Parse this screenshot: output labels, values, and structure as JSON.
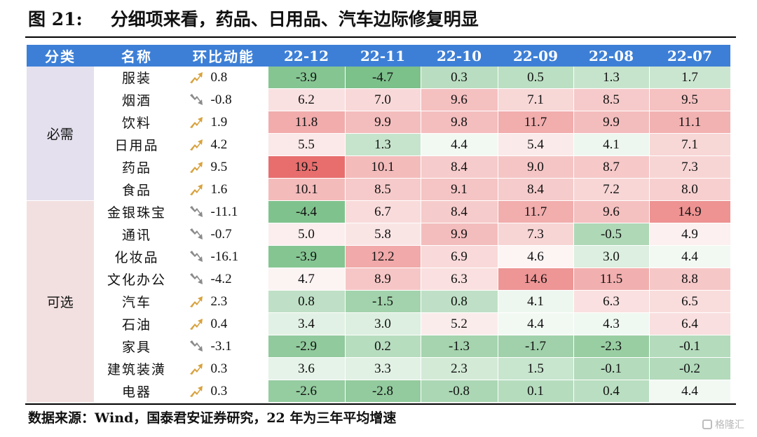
{
  "title": {
    "number": "图 21:",
    "text": "分细项来看，药品、日用品、汽车边际修复明显"
  },
  "headers": [
    "分类",
    "名称",
    "环比动能",
    "22-12",
    "22-11",
    "22-10",
    "22-09",
    "22-08",
    "22-07"
  ],
  "categories": [
    {
      "label": "必需",
      "color": "#e4e0ee"
    },
    {
      "label": "可选",
      "color": "#f2e0e0"
    }
  ],
  "rows": [
    {
      "cat": 0,
      "name": "服装",
      "mom": "0.8",
      "dir": "up",
      "values": [
        "-3.9",
        "-4.7",
        "0.3",
        "0.5",
        "1.3",
        "1.7"
      ]
    },
    {
      "cat": 0,
      "name": "烟酒",
      "mom": "-0.8",
      "dir": "down",
      "values": [
        "6.2",
        "7.0",
        "9.6",
        "7.1",
        "8.5",
        "9.5"
      ]
    },
    {
      "cat": 0,
      "name": "饮料",
      "mom": "1.9",
      "dir": "up",
      "values": [
        "11.8",
        "9.9",
        "9.8",
        "11.7",
        "9.9",
        "11.1"
      ]
    },
    {
      "cat": 0,
      "name": "日用品",
      "mom": "4.2",
      "dir": "up",
      "values": [
        "5.5",
        "1.3",
        "4.4",
        "5.4",
        "4.1",
        "7.1"
      ]
    },
    {
      "cat": 0,
      "name": "药品",
      "mom": "9.5",
      "dir": "up",
      "values": [
        "19.5",
        "10.1",
        "8.4",
        "9.0",
        "8.7",
        "7.3"
      ]
    },
    {
      "cat": 0,
      "name": "食品",
      "mom": "1.6",
      "dir": "up",
      "values": [
        "10.1",
        "8.5",
        "9.1",
        "8.4",
        "7.2",
        "8.0"
      ]
    },
    {
      "cat": 1,
      "name": "金银珠宝",
      "mom": "-11.1",
      "dir": "down",
      "values": [
        "-4.4",
        "6.7",
        "8.4",
        "11.7",
        "9.6",
        "14.9"
      ]
    },
    {
      "cat": 1,
      "name": "通讯",
      "mom": "-0.7",
      "dir": "down",
      "values": [
        "5.0",
        "5.8",
        "9.9",
        "7.3",
        "-0.5",
        "4.9"
      ]
    },
    {
      "cat": 1,
      "name": "化妆品",
      "mom": "-16.1",
      "dir": "down",
      "values": [
        "-3.9",
        "12.2",
        "6.9",
        "4.6",
        "3.0",
        "4.4"
      ]
    },
    {
      "cat": 1,
      "name": "文化办公",
      "mom": "-4.2",
      "dir": "down",
      "values": [
        "4.7",
        "8.9",
        "6.3",
        "14.6",
        "11.5",
        "8.8"
      ]
    },
    {
      "cat": 1,
      "name": "汽车",
      "mom": "2.3",
      "dir": "up",
      "values": [
        "0.8",
        "-1.5",
        "0.8",
        "4.1",
        "6.3",
        "6.5"
      ]
    },
    {
      "cat": 1,
      "name": "石油",
      "mom": "0.4",
      "dir": "up",
      "values": [
        "3.4",
        "3.0",
        "5.2",
        "4.4",
        "4.3",
        "6.4"
      ]
    },
    {
      "cat": 1,
      "name": "家具",
      "mom": "-3.1",
      "dir": "down",
      "values": [
        "-2.9",
        "0.2",
        "-1.3",
        "-1.7",
        "-2.3",
        "-0.1"
      ]
    },
    {
      "cat": 1,
      "name": "建筑装潢",
      "mom": "0.3",
      "dir": "up",
      "values": [
        "3.6",
        "3.3",
        "2.3",
        "1.5",
        "-0.1",
        "-0.2"
      ]
    },
    {
      "cat": 1,
      "name": "电器",
      "mom": "0.3",
      "dir": "up",
      "values": [
        "-2.6",
        "-2.8",
        "-0.8",
        "0.1",
        "0.4",
        "4.4"
      ]
    }
  ],
  "colors": {
    "header_bg": "#3d7fd6",
    "positive_high": "#e86e6e",
    "negative_high": "#7cc08a",
    "up_arrow": "#d8a23e",
    "down_arrow": "#8a8a8a"
  },
  "chart_data": {
    "type": "heatmap",
    "title": "分细项来看，药品、日用品、汽车边际修复明显",
    "x": [
      "22-12",
      "22-11",
      "22-10",
      "22-09",
      "22-08",
      "22-07"
    ],
    "y": [
      "服装",
      "烟酒",
      "饮料",
      "日用品",
      "药品",
      "食品",
      "金银珠宝",
      "通讯",
      "化妆品",
      "文化办公",
      "汽车",
      "石油",
      "家具",
      "建筑装潢",
      "电器"
    ]
  },
  "source": "数据来源：Wind，国泰君安证券研究，22 年为三年平均增速",
  "watermark": "格隆汇"
}
